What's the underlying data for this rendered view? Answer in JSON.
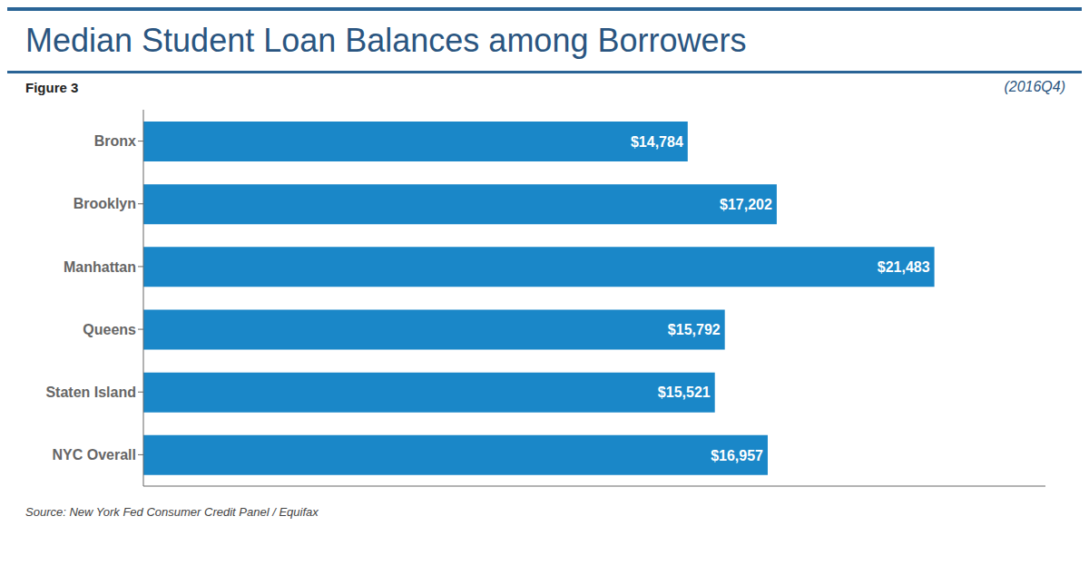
{
  "chart_data": {
    "type": "bar",
    "title": "Median Student Loan Balances among Borrowers",
    "subtitle": "(2016Q4)",
    "annotations": [
      "Figure 3",
      "Source: New York Fed Consumer Credit Panel / Equifax"
    ],
    "orientation": "horizontal",
    "categories": [
      "Bronx",
      "Brooklyn",
      "Manhattan",
      "Queens",
      "Staten Island",
      "NYC Overall"
    ],
    "values": [
      14784,
      17202,
      21483,
      15792,
      15521,
      16957
    ],
    "value_labels": [
      "$14,784",
      "$17,202",
      "$21,483",
      "$15,792",
      "$15,521",
      "$16,957"
    ],
    "data_labels": true,
    "color": "#1a87c8",
    "xlim": [
      0,
      24500
    ],
    "tick_labels": "y",
    "grid": false
  }
}
